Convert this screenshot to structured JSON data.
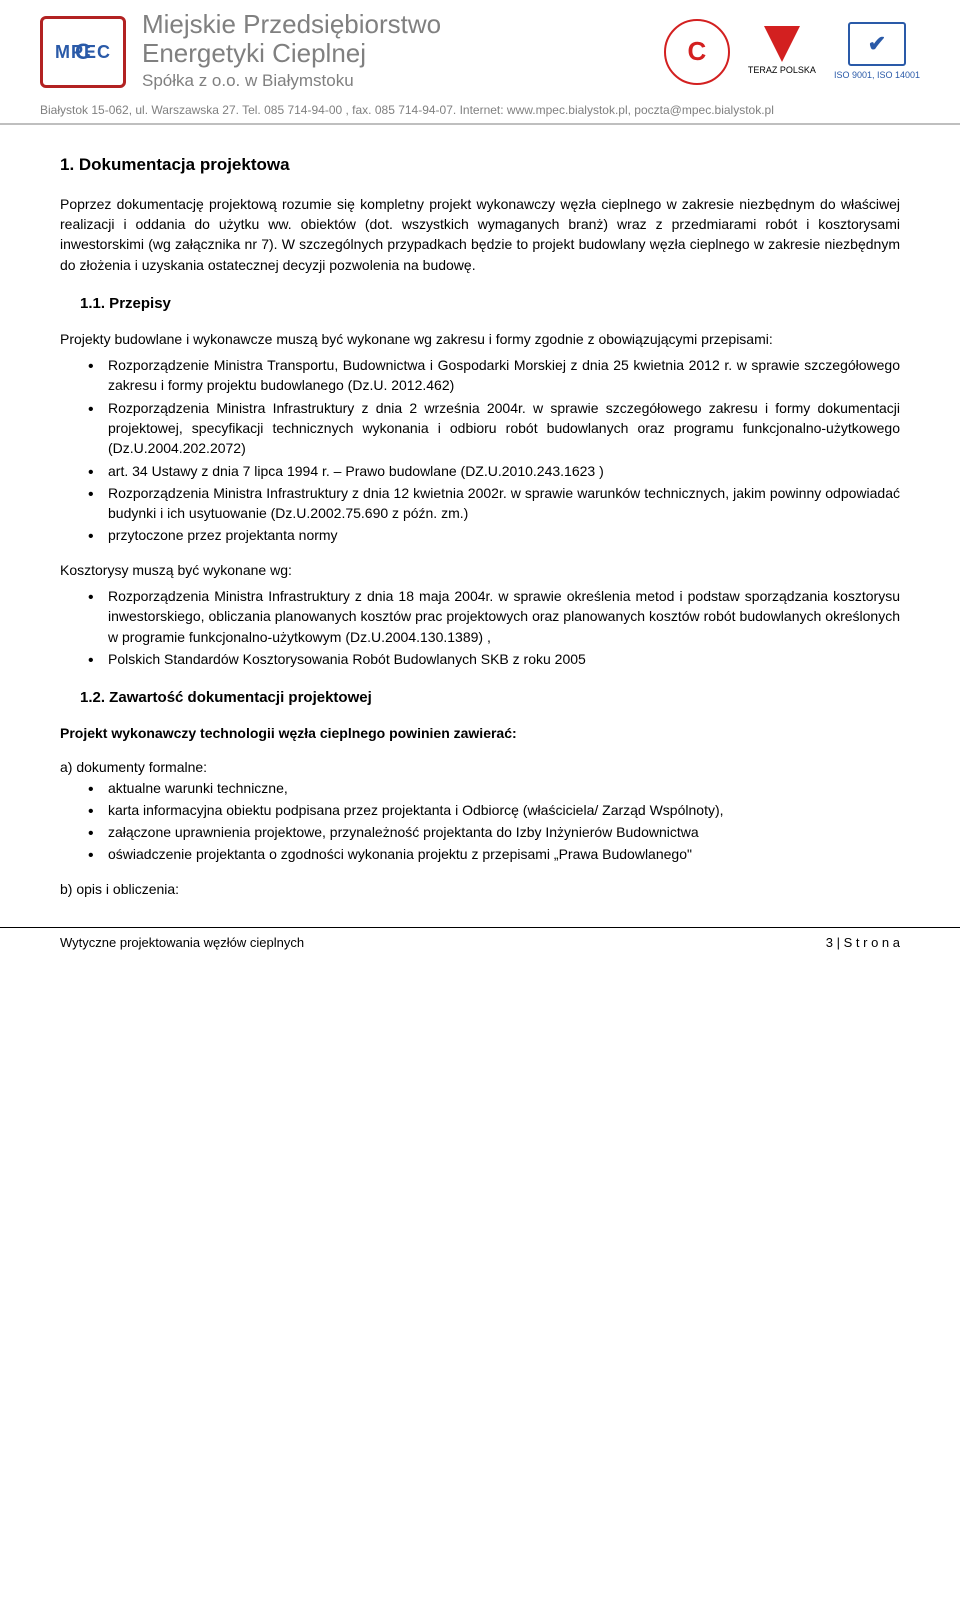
{
  "header": {
    "company_line1": "Miejskie Przedsiębiorstwo",
    "company_line2": "Energetyki Cieplnej",
    "company_sub": "Spółka z o.o. w Białymstoku",
    "logo_text": "MPEC",
    "teraz_polska_label": "TERAZ POLSKA",
    "iso_label": "ISO 9001, ISO 14001",
    "address": "Białystok 15-062, ul. Warszawska 27. Tel. 085 714-94-00 , fax. 085 714-94-07. Internet: www.mpec.bialystok.pl, poczta@mpec.bialystok.pl",
    "colors": {
      "gray_text": "#808080",
      "blue": "#2a5aa8",
      "red": "#d32020",
      "rule": "#bfbfbf"
    }
  },
  "s1": {
    "title": "1. Dokumentacja projektowa",
    "para1": "Poprzez dokumentację projektową rozumie się kompletny projekt wykonawczy węzła cieplnego w zakresie niezbędnym do właściwej realizacji i oddania do użytku ww. obiektów (dot. wszystkich wymaganych branż) wraz z przedmiarami robót i kosztorysami inwestorskimi (wg załącznika nr 7). W szczególnych przypadkach będzie to projekt budowlany węzła cieplnego w zakresie niezbędnym do złożenia i uzyskania ostatecznej decyzji pozwolenia na budowę."
  },
  "s11": {
    "title": "1.1.  Przepisy",
    "lead": "Projekty budowlane i wykonawcze muszą być wykonane wg zakresu i formy zgodnie z obowiązującymi przepisami:",
    "items": [
      "Rozporządzenie Ministra Transportu, Budownictwa i Gospodarki Morskiej z dnia 25 kwietnia 2012 r. w sprawie szczegółowego zakresu i formy projektu budowlanego (Dz.U. 2012.462)",
      "Rozporządzenia Ministra Infrastruktury z dnia 2 września 2004r. w sprawie szczegółowego zakresu i formy dokumentacji projektowej, specyfikacji technicznych wykonania i odbioru robót budowlanych oraz programu funkcjonalno-użytkowego (Dz.U.2004.202.2072)",
      "art. 34 Ustawy z dnia 7 lipca 1994 r. – Prawo budowlane (DZ.U.2010.243.1623 )",
      "Rozporządzenia Ministra Infrastruktury z dnia 12 kwietnia 2002r. w sprawie warunków technicznych, jakim powinny odpowiadać budynki i ich usytuowanie (Dz.U.2002.75.690 z późn. zm.)",
      "przytoczone przez projektanta normy"
    ],
    "kost_lead": "Kosztorysy muszą być wykonane wg:",
    "kost_items": [
      "Rozporządzenia Ministra Infrastruktury z dnia 18 maja 2004r. w sprawie określenia metod i podstaw sporządzania kosztorysu inwestorskiego, obliczania planowanych kosztów prac projektowych oraz planowanych kosztów robót budowlanych określonych w programie funkcjonalno-użytkowym (Dz.U.2004.130.1389) ,",
      "Polskich Standardów Kosztorysowania Robót Budowlanych SKB z roku 2005"
    ]
  },
  "s12": {
    "title": "1.2.   Zawartość dokumentacji projektowej",
    "bold_line": "Projekt wykonawczy technologii węzła cieplnego powinien zawierać:",
    "a_label": "a)  dokumenty formalne:",
    "a_items": [
      "aktualne warunki techniczne,",
      "karta informacyjna obiektu podpisana przez projektanta i Odbiorcę (właściciela/ Zarząd Wspólnoty),",
      "załączone uprawnienia projektowe, przynależność projektanta do Izby Inżynierów Budownictwa",
      "oświadczenie projektanta o zgodności wykonania projektu z przepisami „Prawa Budowlanego\""
    ],
    "b_label": "b)  opis i obliczenia:"
  },
  "footer": {
    "left": "Wytyczne projektowania węzłów cieplnych",
    "right": "3 | S t r o n a"
  }
}
